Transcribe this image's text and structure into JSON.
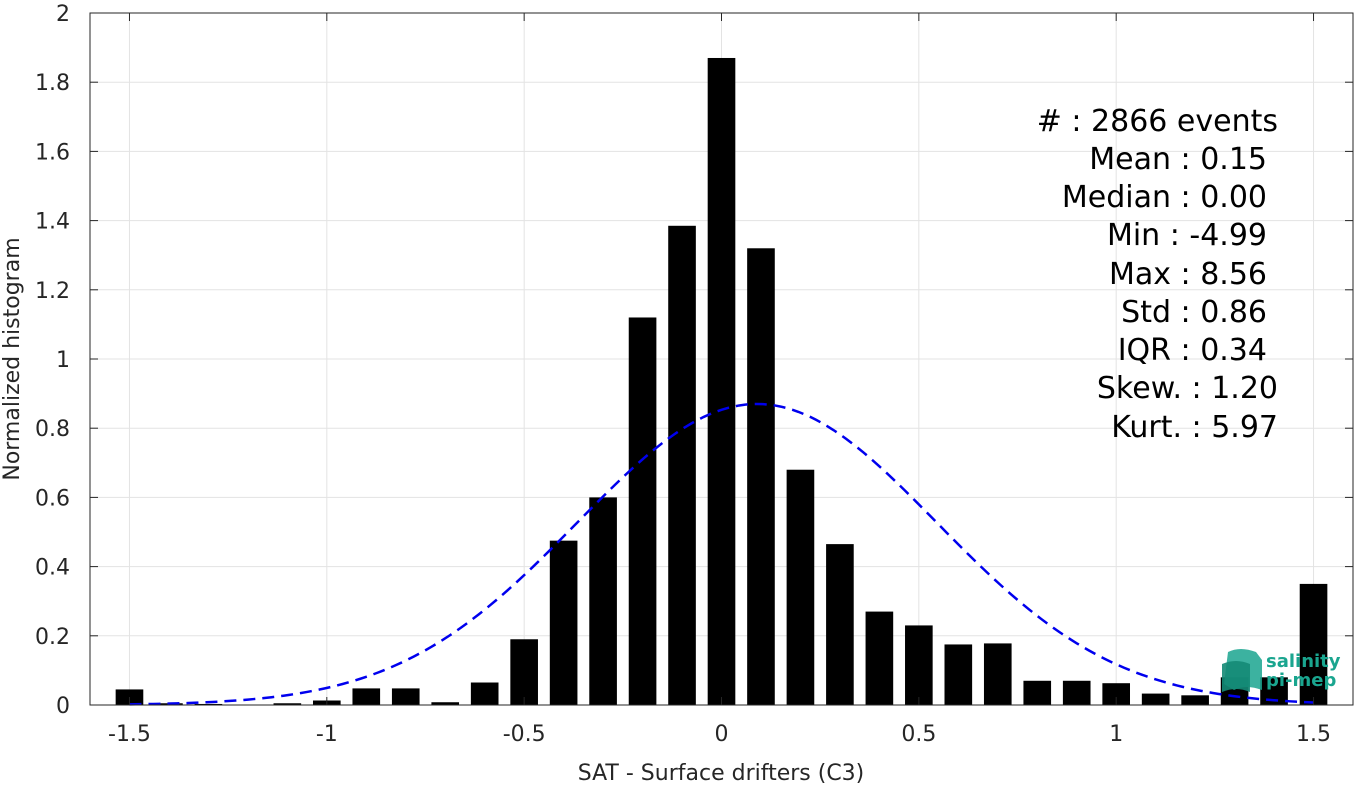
{
  "chart_data": {
    "type": "bar",
    "xlabel": "SAT - Surface drifters (C3)",
    "ylabel": "Normalized histogram",
    "xlim": [
      -1.6,
      1.6
    ],
    "ylim": [
      0,
      2
    ],
    "xticks": [
      -1.5,
      -1,
      -0.5,
      0,
      0.5,
      1,
      1.5
    ],
    "xtick_labels": [
      "-1.5",
      "-1",
      "-0.5",
      "0",
      "0.5",
      "1",
      "1.5"
    ],
    "yticks": [
      0,
      0.2,
      0.4,
      0.6,
      0.8,
      1,
      1.2,
      1.4,
      1.6,
      1.8,
      2
    ],
    "ytick_labels": [
      "0",
      "0.2",
      "0.4",
      "0.6",
      "0.8",
      "1",
      "1.2",
      "1.4",
      "1.6",
      "1.8",
      "2"
    ],
    "grid": true,
    "bar_width": 0.07,
    "bars": {
      "x": [
        -1.5,
        -1.4,
        -1.3,
        -1.2,
        -1.1,
        -1.0,
        -0.9,
        -0.8,
        -0.7,
        -0.6,
        -0.5,
        -0.4,
        -0.3,
        -0.2,
        -0.1,
        0.0,
        0.1,
        0.2,
        0.3,
        0.4,
        0.5,
        0.6,
        0.7,
        0.8,
        0.9,
        1.0,
        1.1,
        1.2,
        1.3,
        1.4,
        1.5
      ],
      "values": [
        0.045,
        0.005,
        0.003,
        0.0,
        0.005,
        0.013,
        0.048,
        0.048,
        0.008,
        0.065,
        0.19,
        0.475,
        0.6,
        1.12,
        1.385,
        1.87,
        1.32,
        0.68,
        0.465,
        0.27,
        0.23,
        0.175,
        0.178,
        0.07,
        0.07,
        0.063,
        0.033,
        0.028,
        0.08,
        0.08,
        0.35
      ],
      "color": "#000000"
    },
    "fit_curve": {
      "style": "dashed",
      "color": "#0000ee",
      "mean": 0.09,
      "std": 0.455,
      "peak": 0.87,
      "x_range": [
        -1.5,
        1.5
      ]
    },
    "stats": [
      {
        "key": "#  ",
        "value": ": 2866 events"
      },
      {
        "key": "Mean ",
        "value": ": 0.15"
      },
      {
        "key": "Median ",
        "value": ": 0.00"
      },
      {
        "key": "Min ",
        "value": ": -4.99"
      },
      {
        "key": "Max ",
        "value": ": 8.56"
      },
      {
        "key": "Std ",
        "value": ": 0.86"
      },
      {
        "key": "IQR ",
        "value": ": 0.34"
      },
      {
        "key": "Skew. ",
        "value": ": 1.20"
      },
      {
        "key": "Kurt. ",
        "value": ": 5.97"
      }
    ],
    "stats_text": [
      "#  : 2866 events",
      "Mean : 0.15",
      "Median : 0.00",
      "Min : -4.99",
      "Max : 8.56",
      "Std : 0.86",
      "IQR : 0.34",
      "Skew. : 1.20",
      "Kurt. : 5.97"
    ],
    "logo": {
      "line1": "salinity",
      "line2": "pi-mep",
      "color": "#1aa58f"
    }
  }
}
